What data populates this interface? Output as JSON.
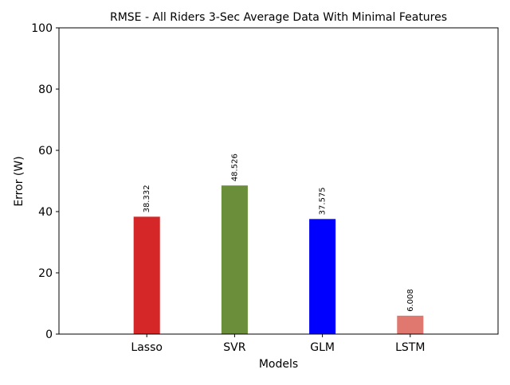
{
  "chart_data": {
    "type": "bar",
    "title": "RMSE - All Riders 3-Sec Average Data With Minimal Features",
    "xlabel": "Models",
    "ylabel": "Error (W)",
    "categories": [
      "Lasso",
      "SVR",
      "GLM",
      "LSTM"
    ],
    "values": [
      38.332,
      48.526,
      37.575,
      6.008
    ],
    "value_labels": [
      "38.332",
      "48.526",
      "37.575",
      "6.008"
    ],
    "colors": [
      "#d62728",
      "#6b8e3a",
      "#0000ff",
      "#e07870"
    ],
    "ylim": [
      0,
      100
    ],
    "xlim": [
      -1,
      4
    ],
    "yticks": [
      0,
      20,
      40,
      60,
      80,
      100
    ],
    "ytick_labels": [
      "0",
      "20",
      "40",
      "60",
      "80",
      "100"
    ],
    "grid": false,
    "legend": "none"
  }
}
